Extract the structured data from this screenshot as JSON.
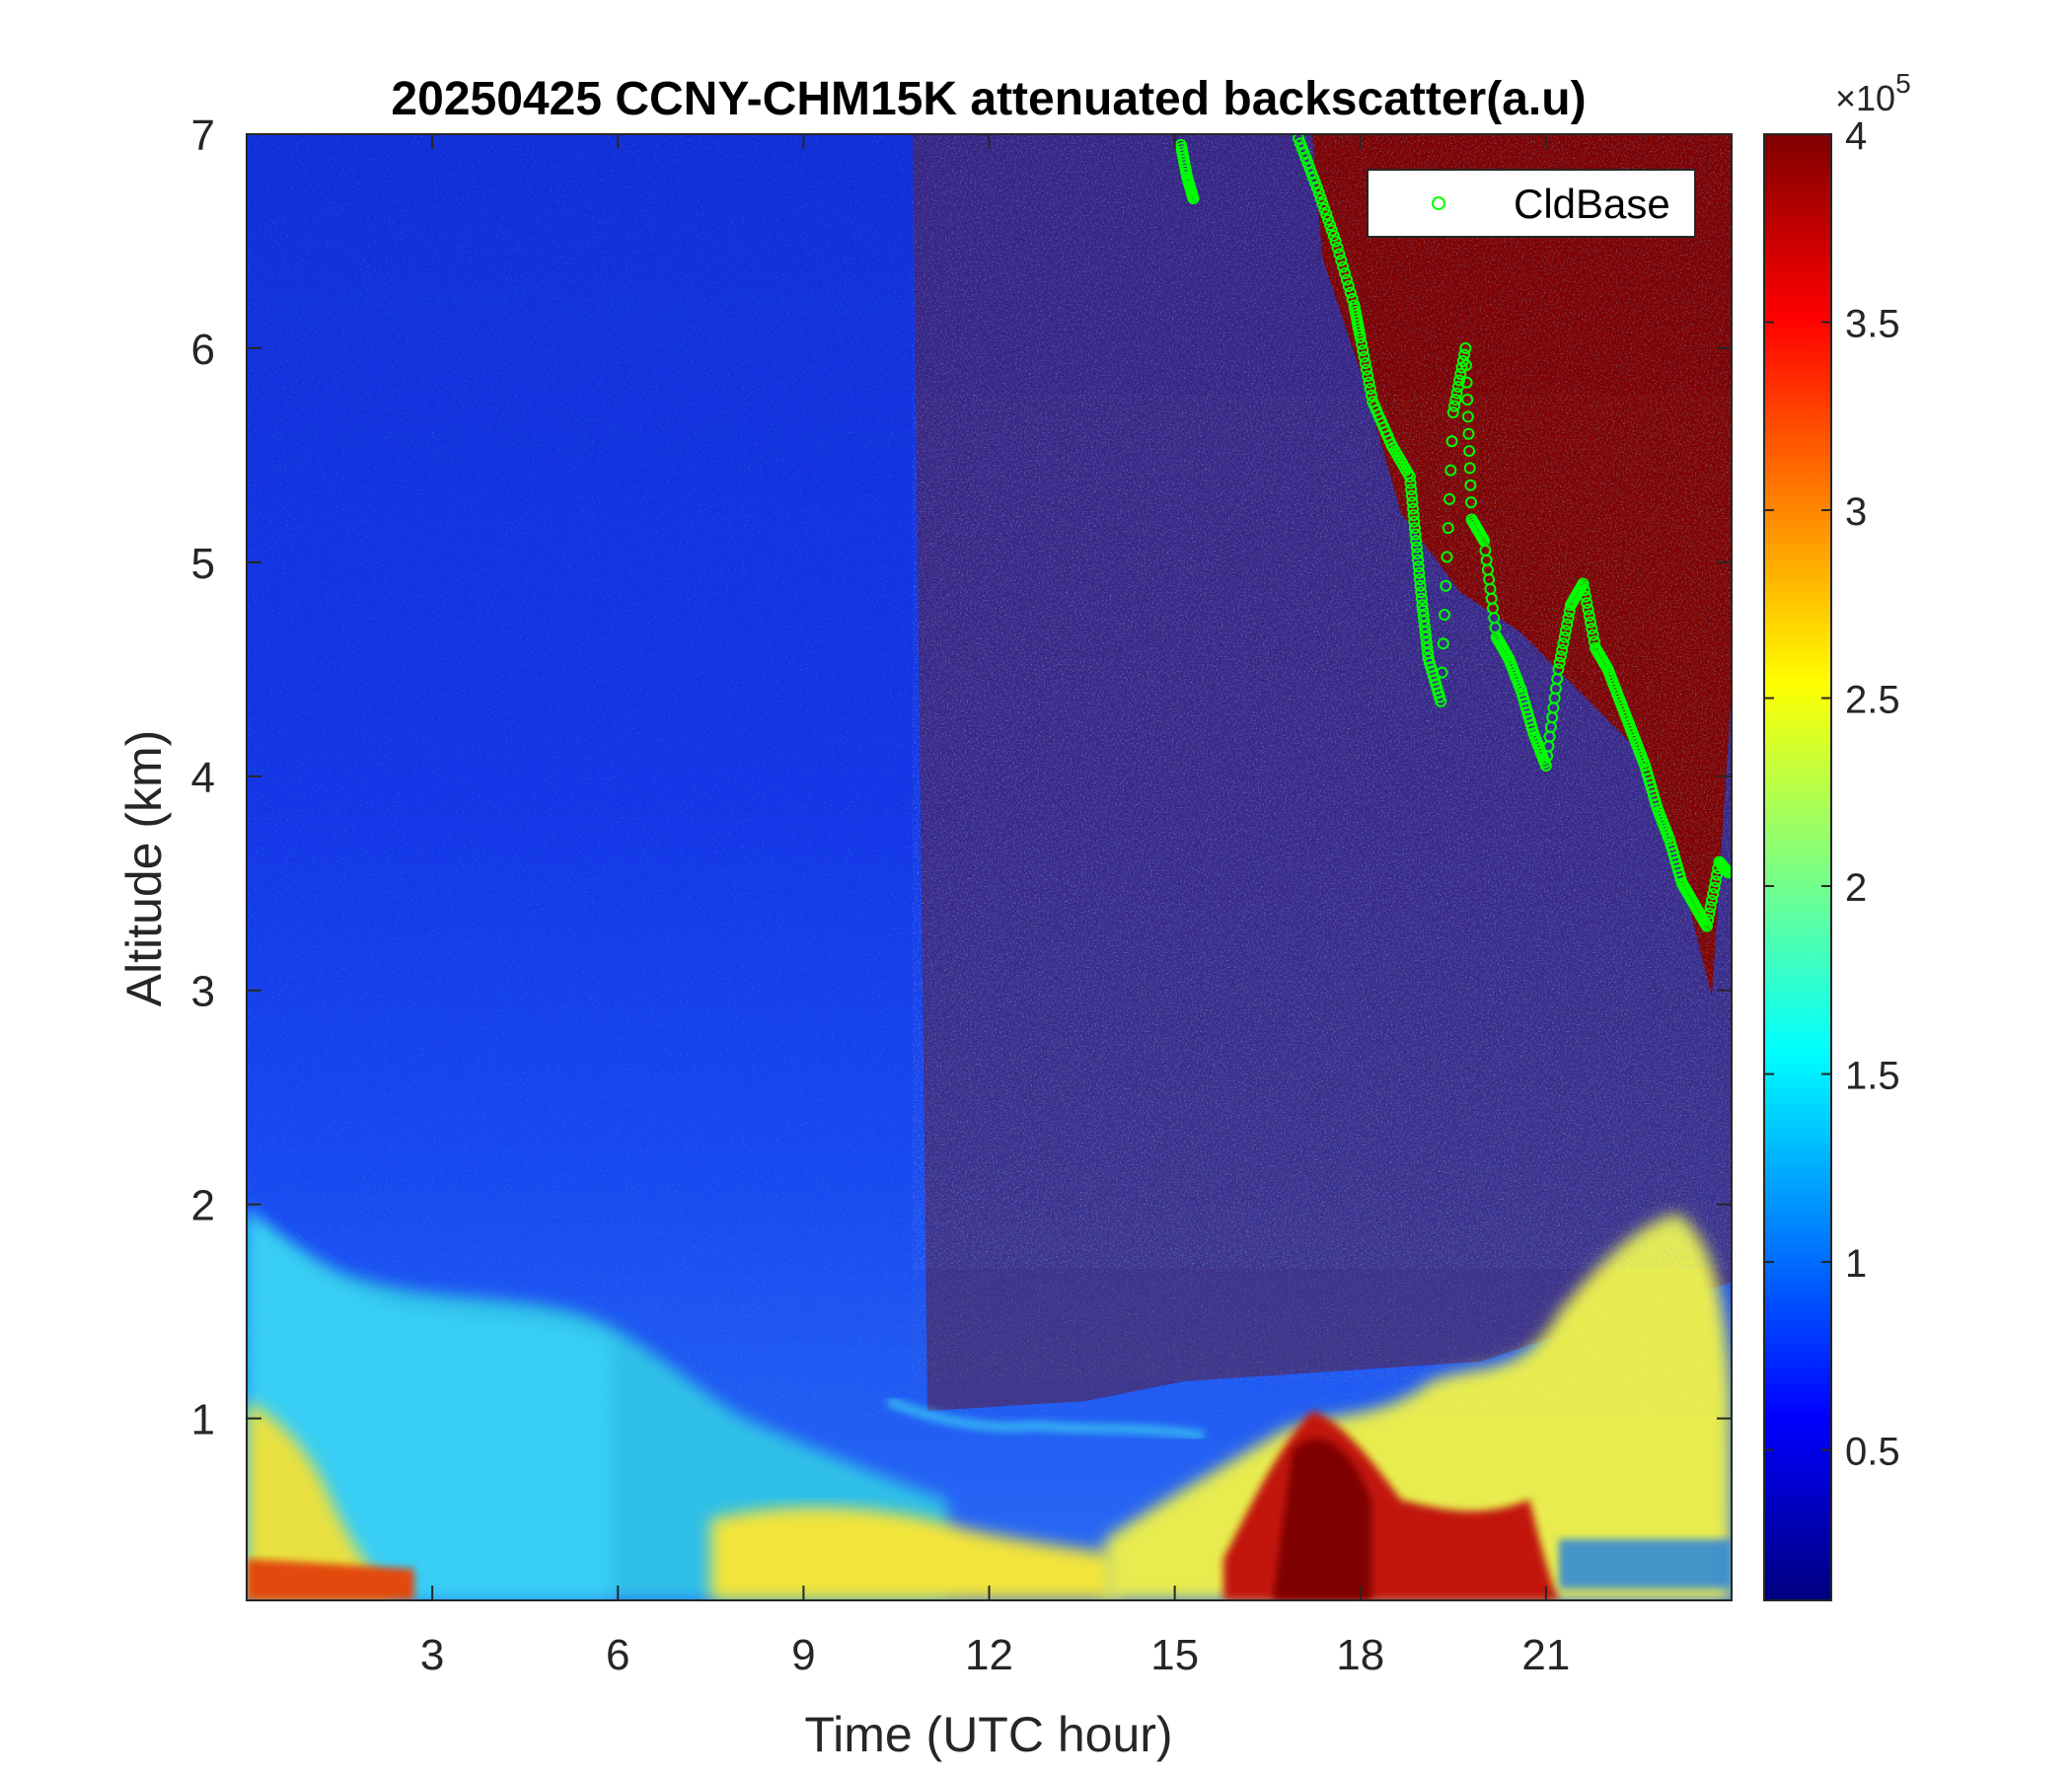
{
  "chart_data": {
    "type": "heatmap",
    "title": "20250425 CCNY-CHM15K attenuated backscatter(a.u)",
    "xlabel": "Time (UTC hour)",
    "ylabel": "Altitude (km)",
    "xlim": [
      0,
      24
    ],
    "ylim": [
      0.15,
      7
    ],
    "x_ticks": [
      3,
      6,
      9,
      12,
      15,
      18,
      21
    ],
    "x_tick_labels": [
      "3",
      "6",
      "9",
      "12",
      "15",
      "18",
      "21"
    ],
    "y_ticks": [
      1,
      2,
      3,
      4,
      5,
      6,
      7
    ],
    "y_tick_labels": [
      "1",
      "2",
      "3",
      "4",
      "5",
      "6",
      "7"
    ],
    "colorbar": {
      "colormap": "jet",
      "clim": [
        0.1,
        4
      ],
      "ticks": [
        0.5,
        1,
        1.5,
        2,
        2.5,
        3,
        3.5,
        4
      ],
      "tick_labels": [
        "0.5",
        "1",
        "1.5",
        "2",
        "2.5",
        "3",
        "3.5",
        "4"
      ],
      "exponent_label": "×10",
      "exponent_power": "5"
    },
    "legend": {
      "placement": "top-right",
      "entries": [
        {
          "name": "CldBase",
          "marker": "circle",
          "color": "#00ff00"
        }
      ]
    },
    "cloud_base_series": {
      "name": "CldBase",
      "x": [
        15.1,
        15.2,
        15.3,
        17.0,
        17.3,
        17.6,
        17.9,
        18.0,
        18.2,
        18.5,
        18.8,
        18.9,
        19.0,
        19.1,
        19.3,
        19.5,
        19.7,
        19.8,
        20.0,
        20.2,
        20.4,
        20.6,
        20.8,
        21.0,
        21.2,
        21.4,
        21.6,
        21.8,
        22.0,
        22.2,
        22.4,
        22.6,
        22.8,
        23.0,
        23.2,
        23.4,
        23.6,
        23.8,
        23.95
      ],
      "y": [
        6.95,
        6.8,
        6.7,
        6.98,
        6.75,
        6.5,
        6.2,
        6.05,
        5.75,
        5.55,
        5.4,
        5.1,
        4.8,
        4.55,
        4.35,
        5.7,
        6.0,
        5.2,
        5.1,
        4.65,
        4.55,
        4.4,
        4.2,
        4.05,
        4.5,
        4.8,
        4.9,
        4.6,
        4.5,
        4.35,
        4.2,
        4.05,
        3.85,
        3.7,
        3.5,
        3.4,
        3.3,
        3.6,
        3.55
      ]
    }
  }
}
